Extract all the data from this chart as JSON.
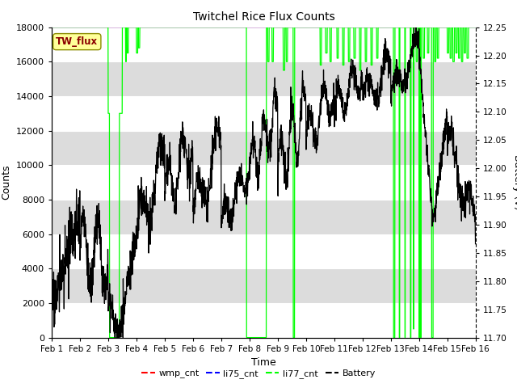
{
  "title": "Twitchel Rice Flux Counts",
  "xlabel": "Time",
  "ylabel_left": "Counts",
  "ylabel_right": "Battery (V)",
  "ylim_left": [
    0,
    18000
  ],
  "ylim_right": [
    11.7,
    12.25
  ],
  "yticks_left": [
    0,
    2000,
    4000,
    6000,
    8000,
    10000,
    12000,
    14000,
    16000,
    18000
  ],
  "yticks_right": [
    11.7,
    11.75,
    11.8,
    11.85,
    11.9,
    11.95,
    12.0,
    12.05,
    12.1,
    12.15,
    12.2,
    12.25
  ],
  "xtick_labels": [
    "Feb 1",
    "Feb 2",
    "Feb 3",
    "Feb 4",
    "Feb 5",
    "Feb 6",
    "Feb 7",
    "Feb 8",
    "Feb 9",
    "Feb 10",
    "Feb 11",
    "Feb 12",
    "Feb 13",
    "Feb 14",
    "Feb 15",
    "Feb 16"
  ],
  "wmp_color": "#FF0000",
  "li75_color": "#0000FF",
  "li77_color": "#00FF00",
  "battery_color": "#000000",
  "legend_box_color": "#FFFF99",
  "legend_box_label": "TW_flux",
  "bg_color": "#DCDCDC",
  "grid_color": "#F0F0F0",
  "fig_bg": "#FFFFFF",
  "n_days": 15,
  "pts_per_day": 144
}
